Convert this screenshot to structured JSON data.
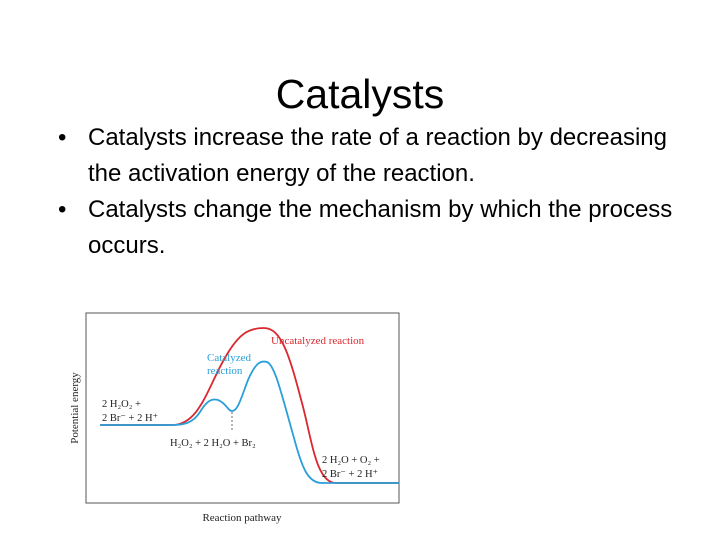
{
  "slide": {
    "title": "Catalysts",
    "bullets": [
      "Catalysts increase the rate of a reaction by decreasing the activation energy of the reaction.",
      "Catalysts change the mechanism by which the process occurs."
    ]
  },
  "diagram": {
    "y_axis_label": "Potential energy",
    "x_axis_label": "Reaction pathway",
    "uncatalyzed_label": "Uncatalyzed reaction",
    "catalyzed_label_line1": "Catalyzed",
    "catalyzed_label_line2": "reaction",
    "reactants_line1": "2 H₂O₂ +",
    "reactants_line2": "2 Br⁻ + 2 H⁺",
    "intermediate": "H₂O₂ + 2 H₂O + Br₂",
    "products_line1": "2 H₂O + O₂ +",
    "products_line2": "2 Br⁻ + 2 H⁺",
    "colors": {
      "uncatalyzed": "#d9282f",
      "catalyzed": "#2a9fd8",
      "frame": "#555555"
    }
  }
}
